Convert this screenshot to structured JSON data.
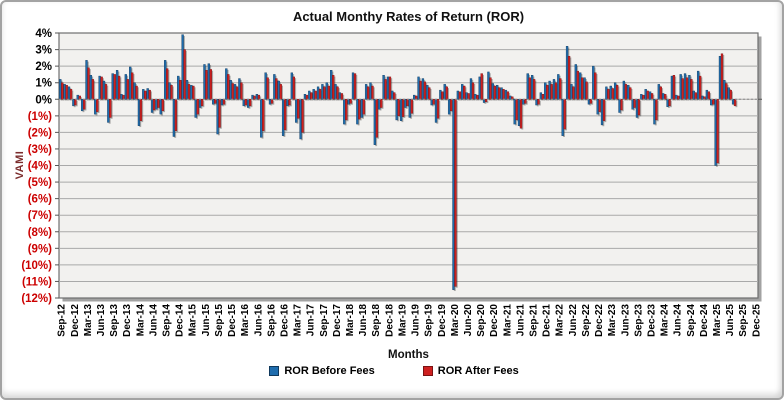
{
  "chart": {
    "title": "Actual Monthy Rates of Return (ROR)",
    "y_axis": {
      "title": "VAMI"
    },
    "x_axis": {
      "title": "Months"
    },
    "legend": [
      {
        "label": "ROR Before Fees",
        "color": "#1F6DAE",
        "border": "#10395C"
      },
      {
        "label": "ROR After Fees",
        "color": "#CE2020",
        "border": "#7A1212"
      }
    ]
  },
  "chart_data": {
    "type": "bar",
    "title": "Actual Monthy Rates of Return (ROR)",
    "xlabel": "Months",
    "ylabel": "VAMI",
    "ylim": [
      -12,
      4
    ],
    "grid": true,
    "legend_position": "bottom",
    "y_tick_labels": [
      "4%",
      "3%",
      "2%",
      "1%",
      "0%",
      "(1%)",
      "(2%)",
      "(3%)",
      "(4%)",
      "(5%)",
      "(6%)",
      "(7%)",
      "(8%)",
      "(9%)",
      "(10%)",
      "(11%)",
      "(12%)"
    ],
    "x_tick_every": 3,
    "categories": [
      "Sep-12",
      "Oct-12",
      "Nov-12",
      "Dec-12",
      "Jan-13",
      "Feb-13",
      "Mar-13",
      "Apr-13",
      "May-13",
      "Jun-13",
      "Jul-13",
      "Aug-13",
      "Sep-13",
      "Oct-13",
      "Nov-13",
      "Dec-13",
      "Jan-14",
      "Feb-14",
      "Mar-14",
      "Apr-14",
      "May-14",
      "Jun-14",
      "Jul-14",
      "Aug-14",
      "Sep-14",
      "Oct-14",
      "Nov-14",
      "Dec-14",
      "Jan-15",
      "Feb-15",
      "Mar-15",
      "Apr-15",
      "May-15",
      "Jun-15",
      "Jul-15",
      "Aug-15",
      "Sep-15",
      "Oct-15",
      "Nov-15",
      "Dec-15",
      "Jan-16",
      "Feb-16",
      "Mar-16",
      "Apr-16",
      "May-16",
      "Jun-16",
      "Jul-16",
      "Aug-16",
      "Sep-16",
      "Oct-16",
      "Nov-16",
      "Dec-16",
      "Jan-17",
      "Feb-17",
      "Mar-17",
      "Apr-17",
      "May-17",
      "Jun-17",
      "Jul-17",
      "Aug-17",
      "Sep-17",
      "Oct-17",
      "Nov-17",
      "Dec-17",
      "Jan-18",
      "Feb-18",
      "Mar-18",
      "Apr-18",
      "May-18",
      "Jun-18",
      "Jul-18",
      "Aug-18",
      "Sep-18",
      "Oct-18",
      "Nov-18",
      "Dec-18",
      "Jan-19",
      "Feb-19",
      "Mar-19",
      "Apr-19",
      "May-19",
      "Jun-19",
      "Jul-19",
      "Aug-19",
      "Sep-19",
      "Oct-19",
      "Nov-19",
      "Dec-19",
      "Jan-20",
      "Feb-20",
      "Mar-20",
      "Apr-20",
      "May-20",
      "Jun-20",
      "Jul-20",
      "Aug-20",
      "Sep-20",
      "Oct-20",
      "Nov-20",
      "Dec-20",
      "Jan-21",
      "Feb-21",
      "Mar-21",
      "Apr-21",
      "May-21",
      "Jun-21",
      "Jul-21",
      "Aug-21",
      "Sep-21",
      "Oct-21",
      "Nov-21",
      "Dec-21",
      "Jan-22",
      "Feb-22",
      "Mar-22",
      "Apr-22",
      "May-22",
      "Jun-22",
      "Jul-22",
      "Aug-22",
      "Sep-22",
      "Oct-22",
      "Nov-22",
      "Dec-22",
      "Jan-23",
      "Feb-23",
      "Mar-23",
      "Apr-23",
      "May-23",
      "Jun-23",
      "Jul-23",
      "Aug-23",
      "Sep-23",
      "Oct-23",
      "Nov-23",
      "Dec-23",
      "Jan-24",
      "Feb-24",
      "Mar-24",
      "Apr-24",
      "May-24",
      "Jun-24",
      "Jul-24",
      "Aug-24",
      "Sep-24",
      "Oct-24",
      "Nov-24",
      "Dec-24",
      "Jan-25",
      "Feb-25",
      "Mar-25",
      "Apr-25",
      "May-25",
      "Jun-25",
      "Jul-25",
      "Aug-25",
      "Sep-25",
      "Oct-25",
      "Nov-25",
      "Dec-25"
    ],
    "series": [
      {
        "name": "ROR Before Fees",
        "color": "#1F6DAE",
        "edge": "#10395C",
        "values": [
          1.2,
          0.9,
          0.75,
          -0.4,
          0.25,
          -0.7,
          2.35,
          1.45,
          -0.9,
          1.4,
          1.1,
          -1.4,
          1.55,
          1.75,
          0.3,
          1.5,
          1.95,
          1.0,
          -1.6,
          0.6,
          0.65,
          -0.8,
          -0.6,
          -0.9,
          2.35,
          1.0,
          -2.25,
          1.4,
          3.9,
          1.15,
          0.85,
          -1.1,
          -0.5,
          2.1,
          2.15,
          -0.3,
          -2.1,
          -0.35,
          1.85,
          1.15,
          0.9,
          1.25,
          -0.4,
          -0.5,
          0.25,
          0.3,
          -2.3,
          1.6,
          -0.3,
          1.5,
          1.1,
          -2.2,
          -0.4,
          1.6,
          -1.4,
          -2.4,
          0.3,
          0.5,
          0.6,
          0.75,
          0.9,
          1.0,
          1.75,
          0.9,
          0.4,
          -1.5,
          -0.3,
          1.6,
          -1.5,
          -1.1,
          0.9,
          1.0,
          -2.75,
          -0.6,
          1.45,
          1.35,
          0.5,
          -1.25,
          -1.3,
          -0.5,
          -1.1,
          0.25,
          1.35,
          1.25,
          0.85,
          -0.35,
          -1.4,
          0.55,
          0.9,
          -0.9,
          -11.5,
          0.5,
          0.9,
          0.4,
          1.25,
          0.3,
          1.35,
          -0.2,
          1.65,
          0.95,
          0.85,
          0.7,
          0.55,
          0.2,
          -1.5,
          -1.6,
          -0.3,
          1.55,
          1.45,
          -0.35,
          0.4,
          1.0,
          1.1,
          1.2,
          1.5,
          -2.2,
          3.2,
          0.9,
          2.1,
          1.6,
          1.3,
          -0.3,
          2.0,
          -0.9,
          -1.55,
          0.75,
          0.8,
          1.0,
          -0.8,
          1.1,
          0.85,
          -0.6,
          -1.1,
          0.3,
          0.6,
          0.45,
          -1.5,
          0.9,
          0.35,
          -0.45,
          1.4,
          0.25,
          1.5,
          1.55,
          1.45,
          0.5,
          1.7,
          0.2,
          0.55,
          -0.35,
          -4.0,
          2.6,
          1.15,
          0.7,
          -0.3,
          null,
          null,
          null,
          null,
          null
        ]
      },
      {
        "name": "ROR After Fees",
        "color": "#CE2020",
        "edge": "#7A1212",
        "values": [
          1.0,
          0.85,
          0.6,
          -0.35,
          0.2,
          -0.6,
          1.9,
          1.2,
          -0.75,
          1.35,
          0.9,
          -1.1,
          1.5,
          1.4,
          0.25,
          1.2,
          1.6,
          0.8,
          -1.3,
          0.5,
          0.55,
          -0.65,
          -0.5,
          -0.7,
          1.85,
          0.85,
          -1.9,
          1.15,
          3.0,
          0.9,
          0.8,
          -0.9,
          -0.4,
          1.75,
          1.8,
          -0.25,
          -1.7,
          -0.3,
          1.5,
          0.95,
          0.75,
          1.0,
          -0.35,
          -0.4,
          0.2,
          0.25,
          -1.9,
          1.3,
          -0.25,
          1.25,
          0.9,
          -1.85,
          -0.35,
          1.35,
          -1.15,
          -2.0,
          0.25,
          0.4,
          0.5,
          0.6,
          0.75,
          0.8,
          1.45,
          0.75,
          0.35,
          -1.25,
          -0.25,
          1.55,
          -1.2,
          -0.9,
          0.75,
          0.8,
          -2.3,
          -0.5,
          1.2,
          1.35,
          0.4,
          -1.0,
          -1.05,
          -0.4,
          -0.85,
          0.2,
          1.1,
          1.05,
          0.7,
          -0.3,
          -1.15,
          0.45,
          0.75,
          -0.7,
          -11.3,
          0.45,
          0.8,
          0.35,
          1.0,
          0.25,
          1.55,
          -0.15,
          1.3,
          0.8,
          0.7,
          0.6,
          0.45,
          0.15,
          -1.25,
          -1.75,
          -0.25,
          1.3,
          1.2,
          -0.3,
          0.3,
          0.85,
          0.9,
          1.0,
          1.25,
          -1.8,
          2.6,
          0.75,
          1.7,
          1.3,
          1.05,
          -0.25,
          1.6,
          -0.75,
          -1.3,
          0.6,
          0.65,
          0.85,
          -0.65,
          0.9,
          0.7,
          -0.5,
          -0.95,
          0.25,
          0.5,
          0.35,
          -1.25,
          0.75,
          0.3,
          -0.4,
          1.45,
          0.2,
          1.25,
          1.3,
          1.2,
          0.4,
          1.4,
          0.15,
          0.45,
          -0.3,
          -3.85,
          2.75,
          0.95,
          0.55,
          -0.4,
          null,
          null,
          null,
          null,
          null
        ]
      }
    ]
  }
}
